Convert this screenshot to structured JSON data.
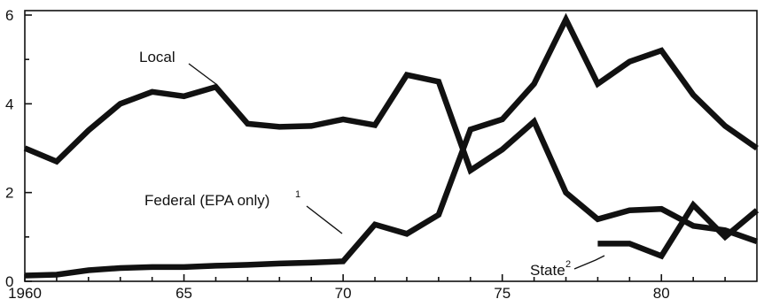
{
  "chart_data": {
    "type": "line",
    "x_ticks": [
      {
        "value": 1960,
        "label": "1960"
      },
      {
        "value": 1965,
        "label": "65"
      },
      {
        "value": 1970,
        "label": "70"
      },
      {
        "value": 1975,
        "label": "75"
      },
      {
        "value": 1980,
        "label": "80"
      }
    ],
    "y_ticks": [
      {
        "value": 0,
        "label": "0"
      },
      {
        "value": 2,
        "label": "2"
      },
      {
        "value": 4,
        "label": "4"
      },
      {
        "value": 6,
        "label": "6"
      }
    ],
    "xlim": [
      1960,
      1983
    ],
    "ylim": [
      0,
      6.1
    ],
    "grid": false,
    "series": [
      {
        "key": "local",
        "name": "Local",
        "x": [
          1960,
          1961,
          1962,
          1963,
          1964,
          1965,
          1966,
          1967,
          1968,
          1969,
          1970,
          1971,
          1972,
          1973,
          1974,
          1975,
          1976,
          1977,
          1978,
          1979,
          1980,
          1981,
          1982,
          1983
        ],
        "y": [
          3.0,
          2.7,
          3.4,
          4.0,
          4.27,
          4.17,
          4.38,
          3.55,
          3.48,
          3.5,
          3.65,
          3.52,
          4.65,
          4.5,
          2.5,
          2.97,
          3.6,
          2.0,
          1.4,
          1.6,
          1.63,
          1.25,
          1.15,
          0.9
        ]
      },
      {
        "key": "federal",
        "name": "Federal (EPA only)",
        "name_sup": "1",
        "x": [
          1960,
          1961,
          1962,
          1963,
          1964,
          1965,
          1966,
          1967,
          1968,
          1969,
          1970,
          1971,
          1972,
          1973,
          1974,
          1975,
          1976,
          1977,
          1978,
          1979,
          1980,
          1981,
          1982,
          1983
        ],
        "y": [
          0.13,
          0.15,
          0.25,
          0.3,
          0.32,
          0.32,
          0.35,
          0.37,
          0.4,
          0.42,
          0.45,
          1.28,
          1.07,
          1.5,
          3.42,
          3.65,
          4.45,
          5.9,
          4.45,
          4.95,
          5.2,
          4.2,
          3.5,
          3.0
        ]
      },
      {
        "key": "state",
        "name": "State",
        "name_sup": "2",
        "x": [
          1978,
          1979,
          1980,
          1981,
          1982,
          1983
        ],
        "y": [
          0.85,
          0.85,
          0.57,
          1.72,
          1.0,
          1.6
        ]
      }
    ]
  }
}
